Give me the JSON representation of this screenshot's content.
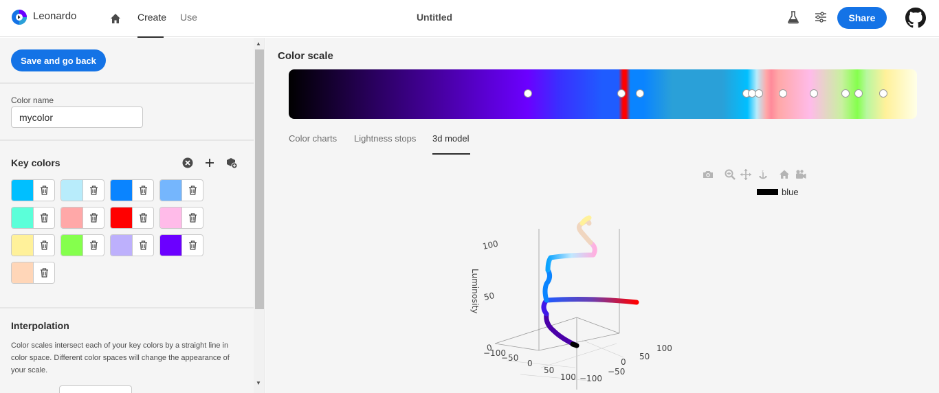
{
  "header": {
    "brand": "Leonardo",
    "nav_tabs": [
      "Create",
      "Use"
    ],
    "active_tab": "Create",
    "doc_title": "Untitled",
    "share_label": "Share"
  },
  "sidebar": {
    "save_label": "Save and go back",
    "color_name": {
      "label": "Color name",
      "value": "mycolor"
    },
    "key_colors": {
      "title": "Key colors",
      "swatches": [
        "#00bfff",
        "#b8ecfb",
        "#0a84ff",
        "#75b6fd",
        "#5bffd9",
        "#ffa8a8",
        "#ff0000",
        "#ffbbe9",
        "#fff19a",
        "#85ff4d",
        "#bdb0fc",
        "#6b00ff",
        "#ffd6b8"
      ]
    },
    "interpolation": {
      "title": "Interpolation",
      "description": "Color scales intersect each of your key colors by a straight line in color space. Different color spaces will change the appearance of your scale."
    }
  },
  "main": {
    "title": "Color scale",
    "stop_positions": [
      0.381,
      0.53,
      0.559,
      0.729,
      0.737,
      0.748,
      0.787,
      0.836,
      0.886,
      0.907,
      0.946
    ],
    "subtabs": [
      "Color charts",
      "Lightness stops",
      "3d model"
    ],
    "active_subtab": "3d model",
    "legend": "blue",
    "chart_data": {
      "type": "scatter",
      "title": "",
      "zlabel": "Luminosity",
      "z_ticks": [
        "0",
        "50",
        "100"
      ],
      "x_ticks": [
        "−100",
        "−50",
        "0",
        "50",
        "100"
      ],
      "y_ticks": [
        "−100",
        "−50",
        "0",
        "50",
        "100"
      ],
      "series": [
        {
          "name": "blue"
        }
      ]
    }
  },
  "colors": {
    "accent": "#1473e6",
    "scale_stops": [
      "#000000",
      "#2b0060",
      "#4a00a8",
      "#6b00ff",
      "#1f5cff",
      "#0a84ff",
      "#ff0000",
      "#2aa0d8",
      "#00bfff",
      "#b8ecfb",
      "#ffa8a8",
      "#ffbbe9",
      "#85ff4d",
      "#fff19a",
      "#ffffe8"
    ]
  }
}
